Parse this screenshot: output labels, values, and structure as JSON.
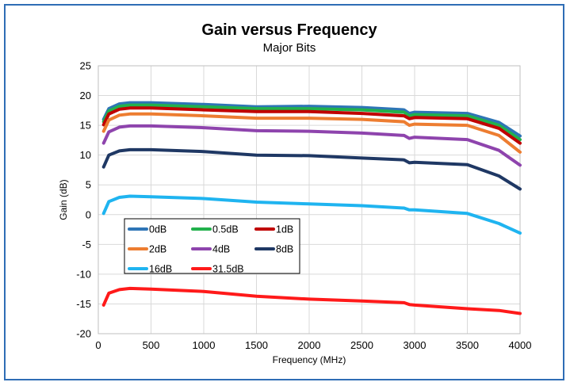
{
  "chart_data": {
    "type": "line",
    "title": "Gain versus Frequency",
    "subtitle": "Major Bits",
    "xlabel": "Frequency (MHz)",
    "ylabel": "Gain (dB)",
    "xlim": [
      0,
      4000
    ],
    "ylim": [
      -20,
      25
    ],
    "xticks": [
      "0",
      "500",
      "1000",
      "1500",
      "2000",
      "2500",
      "3000",
      "3500",
      "4000"
    ],
    "yticks": [
      "25",
      "20",
      "15",
      "10",
      "5",
      "0",
      "-5",
      "-10",
      "-15",
      "-20"
    ],
    "grid": true,
    "legend_position": "lower-left inside plot",
    "x": [
      50,
      100,
      200,
      300,
      500,
      1000,
      1500,
      2000,
      2500,
      2900,
      2950,
      3000,
      3500,
      3800,
      4000
    ],
    "series": [
      {
        "name": "0dB",
        "color": "#2e75b6",
        "values": [
          16.0,
          17.8,
          18.6,
          18.8,
          18.8,
          18.5,
          18.1,
          18.2,
          18.0,
          17.6,
          17.0,
          17.2,
          17.0,
          15.5,
          13.2
        ]
      },
      {
        "name": "0.5dB",
        "color": "#22b14c",
        "values": [
          15.6,
          17.4,
          18.2,
          18.4,
          18.4,
          18.1,
          17.8,
          17.8,
          17.6,
          17.2,
          16.6,
          16.8,
          16.6,
          15.0,
          12.6
        ]
      },
      {
        "name": "1dB",
        "color": "#c00000",
        "values": [
          15.1,
          16.9,
          17.7,
          17.9,
          17.9,
          17.6,
          17.3,
          17.3,
          17.0,
          16.6,
          16.1,
          16.3,
          16.1,
          14.5,
          12.0
        ]
      },
      {
        "name": "2dB",
        "color": "#ed7d31",
        "values": [
          14.0,
          15.9,
          16.7,
          16.9,
          16.9,
          16.6,
          16.2,
          16.2,
          16.0,
          15.6,
          15.0,
          15.2,
          15.0,
          13.3,
          10.5
        ]
      },
      {
        "name": "4dB",
        "color": "#8e44ad",
        "values": [
          12.0,
          13.9,
          14.7,
          14.9,
          14.9,
          14.6,
          14.1,
          14.0,
          13.7,
          13.3,
          12.8,
          13.0,
          12.6,
          10.8,
          8.3
        ]
      },
      {
        "name": "8dB",
        "color": "#1f3864",
        "values": [
          8.0,
          10.0,
          10.7,
          10.9,
          10.9,
          10.6,
          10.0,
          9.9,
          9.5,
          9.2,
          8.7,
          8.8,
          8.4,
          6.5,
          4.3
        ]
      },
      {
        "name": "16dB",
        "color": "#1fb4f0",
        "values": [
          0.2,
          2.2,
          2.9,
          3.1,
          3.0,
          2.7,
          2.1,
          1.8,
          1.5,
          1.1,
          0.8,
          0.8,
          0.2,
          -1.5,
          -3.1
        ]
      },
      {
        "name": "31.5dB",
        "color": "#ff1a1a",
        "values": [
          -15.2,
          -13.2,
          -12.6,
          -12.4,
          -12.5,
          -12.9,
          -13.7,
          -14.2,
          -14.5,
          -14.8,
          -15.1,
          -15.2,
          -15.8,
          -16.1,
          -16.6
        ]
      }
    ]
  }
}
